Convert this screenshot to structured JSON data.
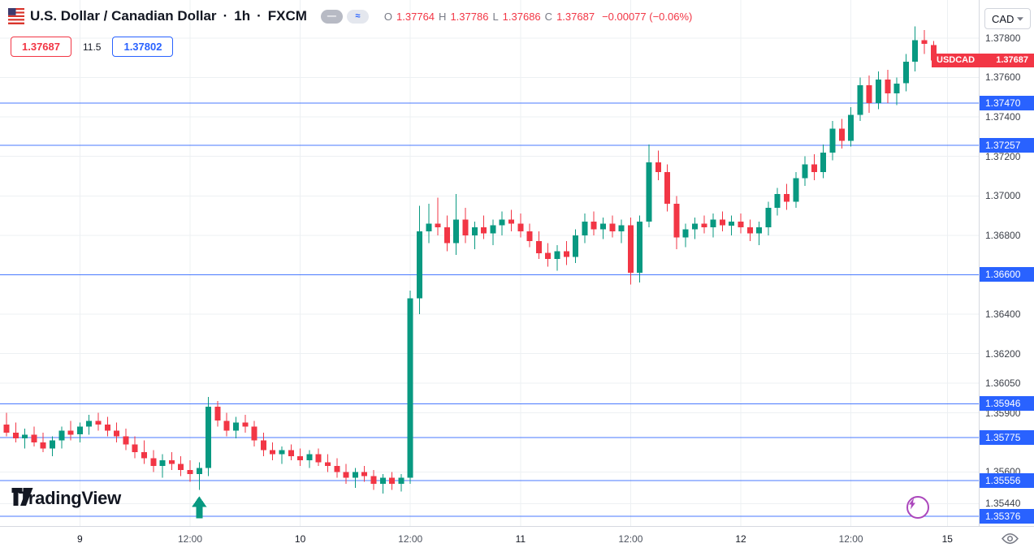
{
  "header": {
    "title": "U.S. Dollar / Canadian Dollar",
    "dot1": "·",
    "interval": "1h",
    "dot2": "·",
    "exchange": "FXCM",
    "pills": [
      "—",
      "≈"
    ],
    "ohlc": {
      "o_label": "O",
      "o": "1.37764",
      "h_label": "H",
      "h": "1.37786",
      "l_label": "L",
      "l": "1.37686",
      "c_label": "C",
      "c": "1.37687",
      "change": "−0.00077 (−0.06%)"
    },
    "bid": "1.37687",
    "spread": "11.5",
    "ask": "1.37802"
  },
  "toolbar": {
    "currency": "CAD"
  },
  "logo": {
    "text": "TradingView"
  },
  "colors": {
    "up": "#089981",
    "down": "#f23645",
    "level": "#2962ff",
    "grid": "#edf0f3",
    "last_badge": "#f23645"
  },
  "price_axis": {
    "labels": [
      1.378,
      1.376,
      1.374,
      1.372,
      1.37,
      1.368,
      1.364,
      1.362,
      1.3605,
      1.359,
      1.356,
      1.3544
    ],
    "last": {
      "symbol": "USDCAD",
      "price": "1.37687"
    }
  },
  "time_axis": {
    "ticks": [
      {
        "label": "9",
        "i": 8,
        "major": true
      },
      {
        "label": "12:00",
        "i": 20,
        "major": false
      },
      {
        "label": "10",
        "i": 32,
        "major": true
      },
      {
        "label": "12:00",
        "i": 44,
        "major": false
      },
      {
        "label": "11",
        "i": 56,
        "major": true
      },
      {
        "label": "12:00",
        "i": 68,
        "major": false
      },
      {
        "label": "12",
        "i": 80,
        "major": true
      },
      {
        "label": "12:00",
        "i": 92,
        "major": false
      },
      {
        "label": "15",
        "i": 102.5,
        "major": true
      }
    ]
  },
  "chart_data": {
    "type": "candlestick",
    "symbol": "USD/CAD",
    "interval": "1h",
    "exchange": "FXCM",
    "ylim": [
      1.35326,
      1.37993
    ],
    "levels": [
      1.3747,
      1.37257,
      1.366,
      1.35946,
      1.35775,
      1.35556,
      1.35376
    ],
    "last_close": 1.37687,
    "marker": {
      "index": 21,
      "type": "arrow-up"
    },
    "candles": [
      [
        1.3584,
        1.359,
        1.3578,
        1.358
      ],
      [
        1.358,
        1.3585,
        1.3575,
        1.3577
      ],
      [
        1.3577,
        1.3582,
        1.3572,
        1.3579
      ],
      [
        1.3579,
        1.3583,
        1.3573,
        1.3575
      ],
      [
        1.3575,
        1.358,
        1.357,
        1.3572
      ],
      [
        1.3572,
        1.3578,
        1.3568,
        1.3576
      ],
      [
        1.3576,
        1.3583,
        1.3572,
        1.3581
      ],
      [
        1.3581,
        1.3586,
        1.3576,
        1.3579
      ],
      [
        1.3579,
        1.3585,
        1.3575,
        1.3583
      ],
      [
        1.3583,
        1.3589,
        1.3579,
        1.3586
      ],
      [
        1.3586,
        1.359,
        1.3581,
        1.3584
      ],
      [
        1.3584,
        1.3588,
        1.3578,
        1.3581
      ],
      [
        1.3581,
        1.3585,
        1.3575,
        1.3578
      ],
      [
        1.3578,
        1.3582,
        1.3571,
        1.3574
      ],
      [
        1.3574,
        1.3578,
        1.3567,
        1.357
      ],
      [
        1.357,
        1.3576,
        1.3564,
        1.3567
      ],
      [
        1.3567,
        1.3571,
        1.356,
        1.3563
      ],
      [
        1.3563,
        1.3569,
        1.3557,
        1.3566
      ],
      [
        1.3566,
        1.357,
        1.3561,
        1.3564
      ],
      [
        1.3564,
        1.3568,
        1.3558,
        1.3561
      ],
      [
        1.3561,
        1.3566,
        1.3555,
        1.3559
      ],
      [
        1.3559,
        1.3565,
        1.3551,
        1.3562
      ],
      [
        1.3562,
        1.3598,
        1.3558,
        1.3593
      ],
      [
        1.3593,
        1.3596,
        1.3583,
        1.3586
      ],
      [
        1.3586,
        1.359,
        1.3578,
        1.3581
      ],
      [
        1.3581,
        1.3588,
        1.3577,
        1.3585
      ],
      [
        1.3585,
        1.3589,
        1.358,
        1.3583
      ],
      [
        1.3583,
        1.3586,
        1.3573,
        1.3576
      ],
      [
        1.3576,
        1.358,
        1.3568,
        1.3571
      ],
      [
        1.3571,
        1.3575,
        1.3566,
        1.3569
      ],
      [
        1.3569,
        1.3573,
        1.3564,
        1.3571
      ],
      [
        1.3571,
        1.3574,
        1.3566,
        1.3568
      ],
      [
        1.3568,
        1.3572,
        1.3563,
        1.3566
      ],
      [
        1.3566,
        1.3571,
        1.3562,
        1.3569
      ],
      [
        1.3569,
        1.3572,
        1.3563,
        1.3565
      ],
      [
        1.3565,
        1.3569,
        1.356,
        1.3563
      ],
      [
        1.3563,
        1.3567,
        1.3557,
        1.356
      ],
      [
        1.356,
        1.3564,
        1.3554,
        1.3557
      ],
      [
        1.3557,
        1.3562,
        1.3552,
        1.356
      ],
      [
        1.356,
        1.3563,
        1.3555,
        1.3558
      ],
      [
        1.3558,
        1.3561,
        1.3551,
        1.3554
      ],
      [
        1.3554,
        1.3559,
        1.3549,
        1.3557
      ],
      [
        1.3557,
        1.356,
        1.3551,
        1.3554
      ],
      [
        1.3554,
        1.3559,
        1.355,
        1.3557
      ],
      [
        1.3557,
        1.3652,
        1.3554,
        1.3648
      ],
      [
        1.3648,
        1.3695,
        1.364,
        1.3682
      ],
      [
        1.3682,
        1.3696,
        1.3676,
        1.3686
      ],
      [
        1.3686,
        1.3699,
        1.368,
        1.3684
      ],
      [
        1.3684,
        1.369,
        1.3672,
        1.3676
      ],
      [
        1.3676,
        1.3701,
        1.367,
        1.3688
      ],
      [
        1.3688,
        1.3694,
        1.3676,
        1.368
      ],
      [
        1.368,
        1.3687,
        1.3673,
        1.3684
      ],
      [
        1.3684,
        1.369,
        1.3678,
        1.3681
      ],
      [
        1.3681,
        1.3688,
        1.3675,
        1.3685
      ],
      [
        1.3685,
        1.3692,
        1.368,
        1.3688
      ],
      [
        1.3688,
        1.3693,
        1.3682,
        1.3686
      ],
      [
        1.3686,
        1.3691,
        1.3679,
        1.3682
      ],
      [
        1.3682,
        1.3686,
        1.3674,
        1.3677
      ],
      [
        1.3677,
        1.3682,
        1.3668,
        1.3671
      ],
      [
        1.3671,
        1.3676,
        1.3664,
        1.3668
      ],
      [
        1.3668,
        1.3675,
        1.3662,
        1.3672
      ],
      [
        1.3672,
        1.3677,
        1.3665,
        1.3669
      ],
      [
        1.3669,
        1.3683,
        1.3666,
        1.368
      ],
      [
        1.368,
        1.3691,
        1.3676,
        1.3687
      ],
      [
        1.3687,
        1.3692,
        1.368,
        1.3683
      ],
      [
        1.3683,
        1.3689,
        1.3678,
        1.3686
      ],
      [
        1.3686,
        1.369,
        1.3679,
        1.3682
      ],
      [
        1.3682,
        1.3688,
        1.3676,
        1.3685
      ],
      [
        1.3685,
        1.3689,
        1.3655,
        1.3661
      ],
      [
        1.3661,
        1.369,
        1.3656,
        1.3687
      ],
      [
        1.3687,
        1.3726,
        1.3684,
        1.3717
      ],
      [
        1.3717,
        1.3723,
        1.3708,
        1.3712
      ],
      [
        1.3712,
        1.3716,
        1.3692,
        1.3696
      ],
      [
        1.3696,
        1.37,
        1.3673,
        1.3679
      ],
      [
        1.3679,
        1.3686,
        1.3674,
        1.3683
      ],
      [
        1.3683,
        1.3689,
        1.3678,
        1.3686
      ],
      [
        1.3686,
        1.369,
        1.3681,
        1.3684
      ],
      [
        1.3684,
        1.3691,
        1.3679,
        1.3688
      ],
      [
        1.3688,
        1.3692,
        1.3682,
        1.3685
      ],
      [
        1.3685,
        1.369,
        1.368,
        1.3687
      ],
      [
        1.3687,
        1.3691,
        1.3681,
        1.3684
      ],
      [
        1.3684,
        1.3688,
        1.3677,
        1.3681
      ],
      [
        1.3681,
        1.3687,
        1.3675,
        1.3684
      ],
      [
        1.3684,
        1.3697,
        1.368,
        1.3694
      ],
      [
        1.3694,
        1.3704,
        1.369,
        1.3701
      ],
      [
        1.3701,
        1.3706,
        1.3693,
        1.3697
      ],
      [
        1.3697,
        1.3712,
        1.3694,
        1.3709
      ],
      [
        1.3709,
        1.372,
        1.3705,
        1.3716
      ],
      [
        1.3716,
        1.3721,
        1.3708,
        1.3712
      ],
      [
        1.3712,
        1.3726,
        1.3709,
        1.3722
      ],
      [
        1.3722,
        1.3738,
        1.3718,
        1.3734
      ],
      [
        1.3734,
        1.3739,
        1.3724,
        1.3728
      ],
      [
        1.3728,
        1.3745,
        1.3725,
        1.3741
      ],
      [
        1.3741,
        1.376,
        1.3738,
        1.3756
      ],
      [
        1.3756,
        1.3761,
        1.3742,
        1.3747
      ],
      [
        1.3747,
        1.3763,
        1.3744,
        1.3759
      ],
      [
        1.3759,
        1.3764,
        1.3747,
        1.3752
      ],
      [
        1.3752,
        1.376,
        1.3746,
        1.3757
      ],
      [
        1.3757,
        1.3772,
        1.3753,
        1.3768
      ],
      [
        1.3768,
        1.3786,
        1.3763,
        1.3779
      ],
      [
        1.3779,
        1.3784,
        1.3772,
        1.3777
      ],
      [
        1.37764,
        1.37786,
        1.37686,
        1.37687
      ]
    ]
  }
}
